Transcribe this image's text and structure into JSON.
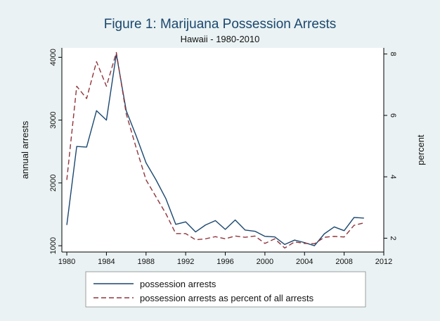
{
  "chart_data": {
    "type": "line",
    "title": "Figure 1: Marijuana Possession Arrests",
    "subtitle": "Hawaii - 1980-2010",
    "ylabel": "annual arrests",
    "y2label": "percent",
    "xlim": [
      1979.5,
      2012
    ],
    "xticks": [
      1980,
      1984,
      1988,
      1992,
      1996,
      2000,
      2004,
      2008,
      2012
    ],
    "ylim": [
      900,
      4150
    ],
    "yticks": [
      1000,
      2000,
      3000,
      4000
    ],
    "y2lim": [
      1.55,
      8.2
    ],
    "y2ticks": [
      2,
      4,
      6,
      8
    ],
    "x": [
      1980,
      1981,
      1982,
      1983,
      1984,
      1985,
      1986,
      1987,
      1988,
      1989,
      1990,
      1991,
      1992,
      1993,
      1994,
      1995,
      1996,
      1997,
      1998,
      1999,
      2000,
      2001,
      2002,
      2003,
      2004,
      2005,
      2006,
      2007,
      2008,
      2009,
      2010
    ],
    "series": [
      {
        "name": "possession arrests",
        "axis": "left",
        "color": "#1a476f",
        "dash": "none",
        "values": [
          1330,
          2580,
          2570,
          3150,
          3000,
          4050,
          3150,
          2750,
          2320,
          2050,
          1750,
          1340,
          1380,
          1220,
          1330,
          1400,
          1260,
          1410,
          1250,
          1230,
          1150,
          1140,
          1020,
          1090,
          1050,
          1000,
          1190,
          1300,
          1240,
          1450,
          1440
        ]
      },
      {
        "name": "possession arrests as percent of all arrests",
        "axis": "right",
        "color": "#90353b",
        "dash": "7,4",
        "values": [
          3.9,
          6.95,
          6.55,
          7.75,
          6.95,
          8.05,
          6.05,
          4.95,
          3.9,
          3.35,
          2.8,
          2.15,
          2.15,
          1.95,
          1.98,
          2.05,
          1.98,
          2.07,
          2.03,
          2.07,
          1.83,
          1.98,
          1.68,
          1.88,
          1.83,
          1.82,
          2.03,
          2.06,
          2.04,
          2.42,
          2.5
        ]
      }
    ],
    "grid": false,
    "legend_position": "bottom"
  }
}
